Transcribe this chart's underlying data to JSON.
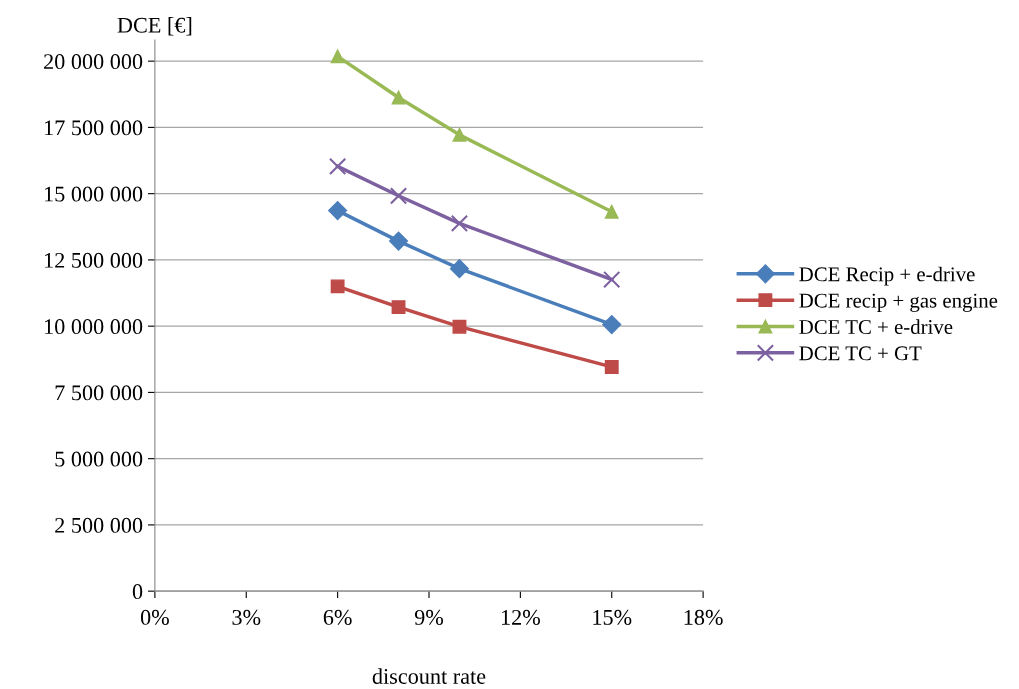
{
  "chart_data": {
    "type": "line",
    "xlabel": "discount rate",
    "ylabel": "DCE [€]",
    "x": [
      6,
      8,
      10,
      15
    ],
    "series": [
      {
        "name": "DCE Recip + e-drive",
        "color": "#4a7ebb",
        "marker": "diamond",
        "values": [
          14360000,
          13210000,
          12170000,
          10060000
        ]
      },
      {
        "name": "DCE recip + gas engine",
        "color": "#be4b48",
        "marker": "square",
        "values": [
          11500000,
          10720000,
          9980000,
          8460000
        ]
      },
      {
        "name": "DCE TC + e-drive",
        "color": "#98b954",
        "marker": "triangle",
        "values": [
          20180000,
          18630000,
          17220000,
          14320000
        ]
      },
      {
        "name": "DCE TC + GT",
        "color": "#7d60a0",
        "marker": "cross",
        "values": [
          16030000,
          14920000,
          13880000,
          11760000
        ]
      }
    ],
    "xlim": [
      0,
      18
    ],
    "xticks": [
      {
        "value": 0,
        "label": "0%"
      },
      {
        "value": 3,
        "label": "3%"
      },
      {
        "value": 6,
        "label": "6%"
      },
      {
        "value": 9,
        "label": "9%"
      },
      {
        "value": 12,
        "label": "12%"
      },
      {
        "value": 15,
        "label": "15%"
      },
      {
        "value": 18,
        "label": "18%"
      }
    ],
    "ylim": [
      0,
      20800000
    ],
    "yticks": [
      {
        "value": 0,
        "label": "0"
      },
      {
        "value": 2500000,
        "label": "2 500 000"
      },
      {
        "value": 5000000,
        "label": "5 000 000"
      },
      {
        "value": 7500000,
        "label": "7 500 000"
      },
      {
        "value": 10000000,
        "label": "10 000 000"
      },
      {
        "value": 12500000,
        "label": "12 500 000"
      },
      {
        "value": 15000000,
        "label": "15 000 000"
      },
      {
        "value": 17500000,
        "label": "17 500 000"
      },
      {
        "value": 20000000,
        "label": "20 000 000"
      }
    ],
    "grid": "y",
    "legend": "right",
    "line_style": "solid"
  }
}
